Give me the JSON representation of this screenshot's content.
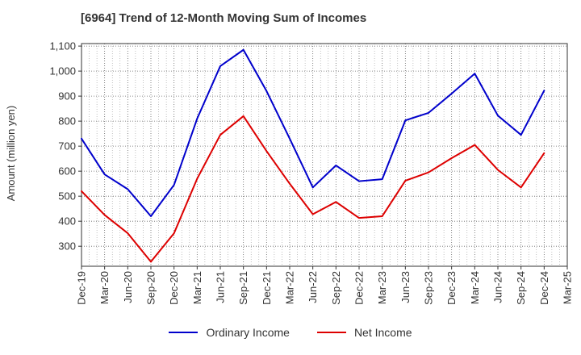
{
  "chart_data": {
    "type": "line",
    "title": "[6964]  Trend of 12-Month Moving Sum of Incomes",
    "xlabel": "",
    "ylabel": "Amount (million yen)",
    "ylim": [
      220,
      1110
    ],
    "y_ticks": [
      300,
      400,
      500,
      600,
      700,
      800,
      900,
      1000,
      1100
    ],
    "y_tick_labels": [
      "300",
      "400",
      "500",
      "600",
      "700",
      "800",
      "900",
      "1,000",
      "1,100"
    ],
    "categories": [
      "Dec-19",
      "Mar-20",
      "Jun-20",
      "Sep-20",
      "Dec-20",
      "Mar-21",
      "Jun-21",
      "Sep-21",
      "Dec-21",
      "Mar-22",
      "Jun-22",
      "Sep-22",
      "Dec-22",
      "Mar-23",
      "Jun-23",
      "Sep-23",
      "Dec-23",
      "Mar-24",
      "Jun-24",
      "Sep-24",
      "Dec-24",
      "Mar-25"
    ],
    "series": [
      {
        "name": "Ordinary Income",
        "color": "#0000cc",
        "values": [
          730,
          587,
          528,
          420,
          545,
          810,
          1020,
          1085,
          920,
          730,
          535,
          623,
          560,
          568,
          803,
          833,
          910,
          990,
          822,
          745,
          922,
          null
        ]
      },
      {
        "name": "Net Income",
        "color": "#dd0000",
        "values": [
          520,
          425,
          352,
          238,
          352,
          570,
          745,
          820,
          680,
          550,
          428,
          477,
          413,
          420,
          562,
          595,
          652,
          705,
          605,
          535,
          672,
          null
        ]
      }
    ],
    "grid": true,
    "legend_position": "bottom"
  }
}
